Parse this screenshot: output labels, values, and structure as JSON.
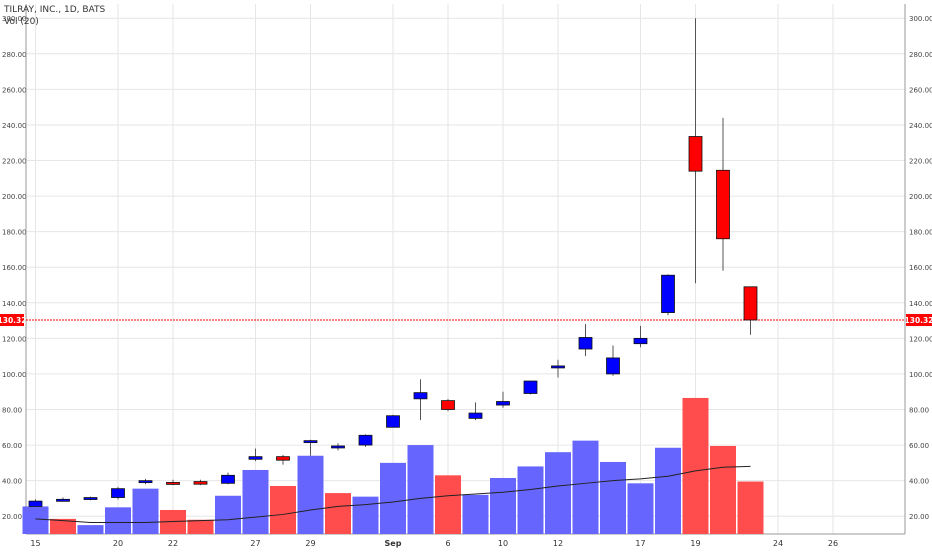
{
  "header": {
    "title": "TILRAY, INC., 1D, BATS",
    "volume_label": "Vol (20)"
  },
  "colors": {
    "up": "#0000ff",
    "down": "#ff0000",
    "vol_up": "#6666ff",
    "vol_down": "#ff4d4d",
    "ma": "#222222",
    "price_line": "#ff0000",
    "grid": "#e6e6e6"
  },
  "chart_data": {
    "type": "candlestick",
    "title": "TILRAY, INC., 1D, BATS",
    "ylim": [
      10,
      308
    ],
    "y_ticks": [
      20,
      40,
      60,
      80,
      100,
      120,
      140,
      160,
      180,
      200,
      220,
      240,
      260,
      280,
      300
    ],
    "x_tick_labels": [
      "15",
      "20",
      "22",
      "27",
      "29",
      "Sep",
      "6",
      "10",
      "12",
      "17",
      "19",
      "24",
      "26"
    ],
    "grid": true,
    "last_price": 130.32,
    "last_price_label": "130.32",
    "candles": [
      {
        "date": "Aug 15",
        "open": 25.5,
        "high": 29.5,
        "low": 25.5,
        "close": 28.5
      },
      {
        "date": "Aug 16",
        "open": 28.5,
        "high": 30.5,
        "low": 28.5,
        "close": 29.5
      },
      {
        "date": "Aug 17",
        "open": 29.5,
        "high": 31.0,
        "low": 29.0,
        "close": 30.5
      },
      {
        "date": "Aug 20",
        "open": 30.5,
        "high": 36.5,
        "low": 29.5,
        "close": 35.5
      },
      {
        "date": "Aug 21",
        "open": 39.0,
        "high": 41.0,
        "low": 38.0,
        "close": 40.0
      },
      {
        "date": "Aug 22",
        "open": 39.0,
        "high": 40.5,
        "low": 37.5,
        "close": 38.5
      },
      {
        "date": "Aug 23",
        "open": 39.5,
        "high": 40.5,
        "low": 37.5,
        "close": 38.0
      },
      {
        "date": "Aug 24",
        "open": 38.5,
        "high": 44.5,
        "low": 38.0,
        "close": 43.0
      },
      {
        "date": "Aug 27",
        "open": 52.0,
        "high": 58.0,
        "low": 51.0,
        "close": 53.5
      },
      {
        "date": "Aug 28",
        "open": 53.5,
        "high": 54.5,
        "low": 49.0,
        "close": 51.5
      },
      {
        "date": "Aug 29",
        "open": 61.5,
        "high": 63.0,
        "low": 54.0,
        "close": 62.5
      },
      {
        "date": "Aug 30",
        "open": 59.0,
        "high": 61.0,
        "low": 57.0,
        "close": 59.5
      },
      {
        "date": "Aug 31",
        "open": 60.0,
        "high": 66.0,
        "low": 59.0,
        "close": 65.5
      },
      {
        "date": "Sep 4",
        "open": 70.0,
        "high": 77.0,
        "low": 70.0,
        "close": 76.5
      },
      {
        "date": "Sep 5",
        "open": 86.0,
        "high": 97.0,
        "low": 74.0,
        "close": 89.5
      },
      {
        "date": "Sep 6",
        "open": 85.0,
        "high": 86.0,
        "low": 79.0,
        "close": 80.0
      },
      {
        "date": "Sep 7",
        "open": 75.0,
        "high": 84.0,
        "low": 74.0,
        "close": 78.0
      },
      {
        "date": "Sep 10",
        "open": 82.5,
        "high": 90.0,
        "low": 81.0,
        "close": 84.5
      },
      {
        "date": "Sep 11",
        "open": 89.0,
        "high": 96.0,
        "low": 88.5,
        "close": 96.0
      },
      {
        "date": "Sep 12",
        "open": 104.0,
        "high": 108.0,
        "low": 98.0,
        "close": 104.5
      },
      {
        "date": "Sep 13",
        "open": 114.0,
        "high": 128.0,
        "low": 110.0,
        "close": 120.5
      },
      {
        "date": "Sep 14",
        "open": 100.0,
        "high": 116.0,
        "low": 99.0,
        "close": 109.0
      },
      {
        "date": "Sep 17",
        "open": 117.0,
        "high": 127.0,
        "low": 115.0,
        "close": 120.0
      },
      {
        "date": "Sep 18",
        "open": 134.5,
        "high": 156.0,
        "low": 133.0,
        "close": 155.5
      },
      {
        "date": "Sep 19",
        "open": 233.5,
        "high": 300.0,
        "low": 151.0,
        "close": 214.0
      },
      {
        "date": "Sep 20",
        "open": 214.5,
        "high": 244.0,
        "low": 158.0,
        "close": 176.0
      },
      {
        "date": "Sep 21",
        "open": 149.0,
        "high": 149.0,
        "low": 122.0,
        "close": 130.32
      }
    ],
    "volume_bars": [
      {
        "date": "Aug 15",
        "value": 25.5,
        "direction": "up"
      },
      {
        "date": "Aug 16",
        "value": 18.5,
        "direction": "down"
      },
      {
        "date": "Aug 17",
        "value": 15.0,
        "direction": "up"
      },
      {
        "date": "Aug 20",
        "value": 25.0,
        "direction": "up"
      },
      {
        "date": "Aug 21",
        "value": 35.5,
        "direction": "up"
      },
      {
        "date": "Aug 22",
        "value": 23.5,
        "direction": "down"
      },
      {
        "date": "Aug 23",
        "value": 18.0,
        "direction": "down"
      },
      {
        "date": "Aug 24",
        "value": 31.5,
        "direction": "up"
      },
      {
        "date": "Aug 27",
        "value": 46.0,
        "direction": "up"
      },
      {
        "date": "Aug 28",
        "value": 37.0,
        "direction": "down"
      },
      {
        "date": "Aug 29",
        "value": 54.0,
        "direction": "up"
      },
      {
        "date": "Aug 30",
        "value": 33.0,
        "direction": "down"
      },
      {
        "date": "Aug 31",
        "value": 31.0,
        "direction": "up"
      },
      {
        "date": "Sep 4",
        "value": 50.0,
        "direction": "up"
      },
      {
        "date": "Sep 5",
        "value": 60.0,
        "direction": "up"
      },
      {
        "date": "Sep 6",
        "value": 43.0,
        "direction": "down"
      },
      {
        "date": "Sep 7",
        "value": 32.0,
        "direction": "up"
      },
      {
        "date": "Sep 10",
        "value": 41.5,
        "direction": "up"
      },
      {
        "date": "Sep 11",
        "value": 48.0,
        "direction": "up"
      },
      {
        "date": "Sep 12",
        "value": 56.0,
        "direction": "up"
      },
      {
        "date": "Sep 13",
        "value": 62.5,
        "direction": "up"
      },
      {
        "date": "Sep 14",
        "value": 50.5,
        "direction": "up"
      },
      {
        "date": "Sep 17",
        "value": 38.5,
        "direction": "up"
      },
      {
        "date": "Sep 18",
        "value": 58.5,
        "direction": "up"
      },
      {
        "date": "Sep 19",
        "value": 86.5,
        "direction": "down"
      },
      {
        "date": "Sep 20",
        "value": 59.5,
        "direction": "down"
      },
      {
        "date": "Sep 21",
        "value": 39.5,
        "direction": "down"
      }
    ],
    "volume_ma": [
      18.5,
      17.5,
      16.5,
      16.5,
      16.5,
      17.0,
      17.5,
      18.0,
      19.5,
      21.0,
      23.5,
      25.5,
      26.5,
      28.0,
      30.0,
      31.5,
      32.5,
      33.5,
      35.0,
      37.0,
      38.5,
      40.0,
      41.0,
      42.5,
      45.5,
      47.5,
      48.0
    ]
  }
}
